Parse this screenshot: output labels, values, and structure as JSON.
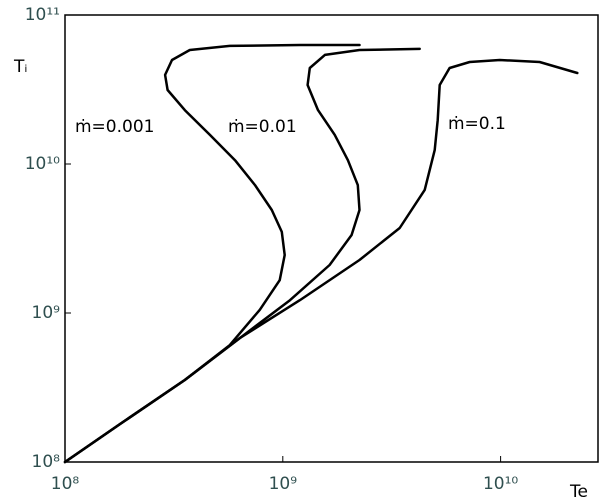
{
  "chart_data": {
    "type": "line",
    "x_label": "Te",
    "y_label": "Tᵢ",
    "xscale": "log",
    "yscale": "log",
    "xlim": [
      100000000.0,
      28000000000.0
    ],
    "ylim": [
      100000000.0,
      100000000000.0
    ],
    "xticks": [
      {
        "value": 100000000.0,
        "label": "10⁸"
      },
      {
        "value": 1000000000.0,
        "label": "10⁹"
      },
      {
        "value": 10000000000.0,
        "label": "10¹⁰"
      }
    ],
    "yticks": [
      {
        "value": 100000000.0,
        "label": "10⁸"
      },
      {
        "value": 1000000000.0,
        "label": "10⁹"
      },
      {
        "value": 10000000000.0,
        "label": "10¹⁰"
      },
      {
        "value": 100000000000.0,
        "label": "10¹¹"
      }
    ],
    "series": [
      {
        "name": "ṁ=0.001",
        "color": "#000000",
        "x": [
          100000000.0,
          179000000.0,
          355000000.0,
          571000000.0,
          784000000.0,
          968000000.0,
          1020000000.0,
          989000000.0,
          890000000.0,
          745000000.0,
          603000000.0,
          462000000.0,
          355000000.0,
          296000000.0,
          288000000.0,
          310000000.0,
          374000000.0,
          571000000.0,
          1200000000.0,
          2250000000.0
        ],
        "values": [
          100000000.0,
          180000000.0,
          355000000.0,
          609000000.0,
          1050000000.0,
          1660000000.0,
          2450000000.0,
          3500000000.0,
          4910000000.0,
          7220000000.0,
          10600000000.0,
          15700000000.0,
          23000000000.0,
          31400000000.0,
          39600000000.0,
          49900000000.0,
          58200000000.0,
          62000000000.0,
          62900000000.0,
          62900000000.0
        ]
      },
      {
        "name": "ṁ=0.01",
        "color": "#000000",
        "x": [
          100000000.0,
          179000000.0,
          355000000.0,
          635000000.0,
          1080000000.0,
          1640000000.0,
          2070000000.0,
          2250000000.0,
          2210000000.0,
          1990000000.0,
          1730000000.0,
          1450000000.0,
          1300000000.0,
          1330000000.0,
          1560000000.0,
          2250000000.0,
          4250000000.0
        ],
        "values": [
          100000000.0,
          180000000.0,
          355000000.0,
          679000000.0,
          1220000000.0,
          2100000000.0,
          3340000000.0,
          4910000000.0,
          7220000000.0,
          10600000000.0,
          15700000000.0,
          23000000000.0,
          33900000000.0,
          44100000000.0,
          54000000000.0,
          58200000000.0,
          59200000000.0
        ]
      },
      {
        "name": "ṁ=0.1",
        "color": "#000000",
        "x": [
          100000000.0,
          179000000.0,
          355000000.0,
          635000000.0,
          1200000000.0,
          2250000000.0,
          3440000000.0,
          4480000000.0,
          4980000000.0,
          5140000000.0,
          5250000000.0,
          5830000000.0,
          7210000000.0,
          9900000000.0,
          15100000000.0,
          22500000000.0
        ],
        "values": [
          100000000.0,
          180000000.0,
          355000000.0,
          679000000.0,
          1220000000.0,
          2270000000.0,
          3720000000.0,
          6700000000.0,
          12400000000.0,
          19700000000.0,
          33900000000.0,
          44100000000.0,
          48400000000.0,
          49900000000.0,
          48400000000.0,
          40800000000.0
        ]
      }
    ]
  }
}
